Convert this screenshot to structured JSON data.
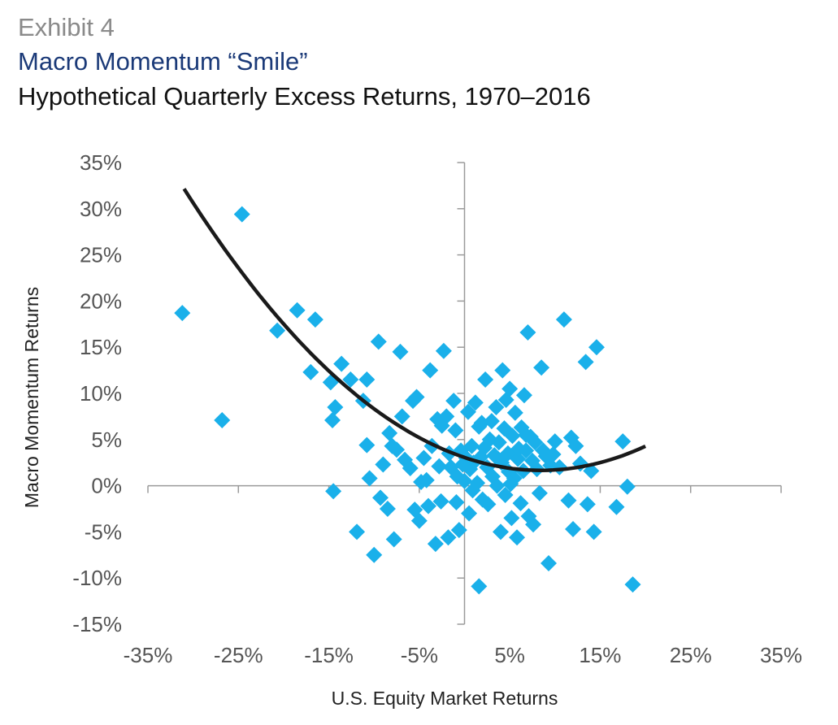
{
  "header": {
    "exhibit": "Exhibit 4",
    "title": "Macro Momentum “Smile”",
    "subtitle": "Hypothetical Quarterly Excess Returns, 1970–2016"
  },
  "chart_data": {
    "type": "scatter",
    "xlabel": "U.S. Equity Market Returns",
    "ylabel": "Macro Momentum Returns",
    "xlim": [
      -35,
      35
    ],
    "ylim": [
      -15,
      35
    ],
    "x_ticks": [
      -35,
      -25,
      -15,
      -5,
      5,
      15,
      25,
      35
    ],
    "y_ticks": [
      -15,
      -10,
      -5,
      0,
      5,
      10,
      15,
      20,
      25,
      30,
      35
    ],
    "x_tick_labels": [
      "-35%",
      "-25%",
      "-15%",
      "-5%",
      "5%",
      "15%",
      "25%",
      "35%"
    ],
    "y_tick_labels": [
      "-15%",
      "-10%",
      "-5%",
      "0%",
      "5%",
      "10%",
      "15%",
      "20%",
      "25%",
      "30%",
      "35%"
    ],
    "marker_color": "#1ab0ea",
    "fit_color": "#1a1a1a",
    "fit": {
      "type": "quadratic",
      "x_range": [
        -31,
        20
      ],
      "coefficients": {
        "a": 0.0196,
        "b": -0.331,
        "c": 3.06
      }
    },
    "points": [
      [
        -31.2,
        18.7
      ],
      [
        -24.6,
        29.4
      ],
      [
        -26.8,
        7.1
      ],
      [
        -20.7,
        16.8
      ],
      [
        -18.5,
        19.0
      ],
      [
        -17.0,
        12.3
      ],
      [
        -16.5,
        18.0
      ],
      [
        -14.8,
        11.2
      ],
      [
        -14.6,
        7.1
      ],
      [
        -14.3,
        8.5
      ],
      [
        -14.5,
        -0.6
      ],
      [
        -13.6,
        13.2
      ],
      [
        -12.6,
        11.5
      ],
      [
        -11.9,
        -5.0
      ],
      [
        -11.2,
        9.2
      ],
      [
        -10.8,
        11.5
      ],
      [
        -10.8,
        4.4
      ],
      [
        -10.5,
        0.8
      ],
      [
        -10.0,
        -7.5
      ],
      [
        -9.5,
        15.6
      ],
      [
        -9.3,
        -1.3
      ],
      [
        -9.0,
        2.3
      ],
      [
        -8.5,
        -2.5
      ],
      [
        -8.3,
        5.7
      ],
      [
        -8.0,
        4.3
      ],
      [
        -7.8,
        -5.8
      ],
      [
        -7.5,
        3.9
      ],
      [
        -7.1,
        14.5
      ],
      [
        -6.9,
        7.5
      ],
      [
        -6.6,
        2.8
      ],
      [
        -6.0,
        1.9
      ],
      [
        -5.7,
        9.2
      ],
      [
        -5.5,
        -2.6
      ],
      [
        -5.3,
        9.6
      ],
      [
        -5.0,
        -3.8
      ],
      [
        -4.8,
        0.4
      ],
      [
        -4.5,
        3.0
      ],
      [
        -4.2,
        0.6
      ],
      [
        -4.0,
        -2.2
      ],
      [
        -3.8,
        12.5
      ],
      [
        -3.6,
        4.3
      ],
      [
        -3.2,
        -6.3
      ],
      [
        -3.0,
        7.2
      ],
      [
        -2.8,
        2.1
      ],
      [
        -2.6,
        -1.7
      ],
      [
        -2.5,
        6.5
      ],
      [
        -2.3,
        14.6
      ],
      [
        -2.0,
        7.5
      ],
      [
        -1.8,
        -5.6
      ],
      [
        -1.7,
        3.5
      ],
      [
        -1.5,
        2.0
      ],
      [
        -1.2,
        9.2
      ],
      [
        -1.0,
        6.0
      ],
      [
        -0.8,
        1.0
      ],
      [
        -0.6,
        -4.8
      ],
      [
        -0.4,
        3.8
      ],
      [
        -0.2,
        2.3
      ],
      [
        0.0,
        0.5
      ],
      [
        0.2,
        3.0
      ],
      [
        0.4,
        8.0
      ],
      [
        0.5,
        -3.0
      ],
      [
        0.6,
        1.8
      ],
      [
        0.8,
        4.3
      ],
      [
        1.0,
        2.5
      ],
      [
        1.2,
        9.0
      ],
      [
        1.4,
        0.3
      ],
      [
        1.6,
        6.4
      ],
      [
        1.8,
        3.1
      ],
      [
        2.0,
        -1.5
      ],
      [
        2.2,
        4.1
      ],
      [
        2.3,
        11.5
      ],
      [
        2.5,
        2.0
      ],
      [
        2.6,
        -2.0
      ],
      [
        2.8,
        5.0
      ],
      [
        3.0,
        7.0
      ],
      [
        3.1,
        1.0
      ],
      [
        3.3,
        3.3
      ],
      [
        3.5,
        8.5
      ],
      [
        3.6,
        0.0
      ],
      [
        3.8,
        4.7
      ],
      [
        4.0,
        -5.0
      ],
      [
        4.1,
        2.5
      ],
      [
        4.2,
        12.5
      ],
      [
        4.4,
        6.2
      ],
      [
        4.5,
        -1.0
      ],
      [
        4.6,
        9.3
      ],
      [
        4.8,
        3.5
      ],
      [
        4.9,
        1.5
      ],
      [
        5.0,
        10.5
      ],
      [
        5.2,
        -3.5
      ],
      [
        5.3,
        5.4
      ],
      [
        5.5,
        0.8
      ],
      [
        5.6,
        7.9
      ],
      [
        5.8,
        -5.6
      ],
      [
        5.9,
        2.9
      ],
      [
        6.0,
        4.0
      ],
      [
        6.2,
        -1.9
      ],
      [
        6.3,
        6.3
      ],
      [
        6.5,
        1.6
      ],
      [
        6.6,
        9.8
      ],
      [
        6.8,
        3.8
      ],
      [
        7.0,
        16.6
      ],
      [
        7.1,
        -3.3
      ],
      [
        7.3,
        5.3
      ],
      [
        7.5,
        2.7
      ],
      [
        7.6,
        -4.2
      ],
      [
        7.8,
        4.7
      ],
      [
        8.0,
        1.8
      ],
      [
        8.3,
        -0.8
      ],
      [
        8.5,
        12.8
      ],
      [
        8.7,
        3.8
      ],
      [
        9.0,
        3.2
      ],
      [
        9.3,
        -8.4
      ],
      [
        9.5,
        2.2
      ],
      [
        10.0,
        4.8
      ],
      [
        10.5,
        2.0
      ],
      [
        11.0,
        18.0
      ],
      [
        11.5,
        -1.6
      ],
      [
        11.8,
        5.2
      ],
      [
        12.0,
        -4.7
      ],
      [
        12.3,
        4.3
      ],
      [
        12.8,
        2.4
      ],
      [
        13.4,
        13.4
      ],
      [
        13.6,
        -2.0
      ],
      [
        14.0,
        1.6
      ],
      [
        14.3,
        -5.0
      ],
      [
        14.6,
        15.0
      ],
      [
        16.8,
        -2.3
      ],
      [
        17.5,
        4.8
      ],
      [
        18.0,
        -0.1
      ],
      [
        18.6,
        -10.7
      ],
      [
        1.6,
        -10.9
      ],
      [
        -0.9,
        -1.8
      ],
      [
        0.9,
        -0.5
      ],
      [
        1.9,
        6.8
      ],
      [
        3.6,
        3.0
      ],
      [
        5.1,
        0.2
      ],
      [
        6.8,
        5.5
      ],
      [
        9.8,
        3.4
      ]
    ]
  }
}
